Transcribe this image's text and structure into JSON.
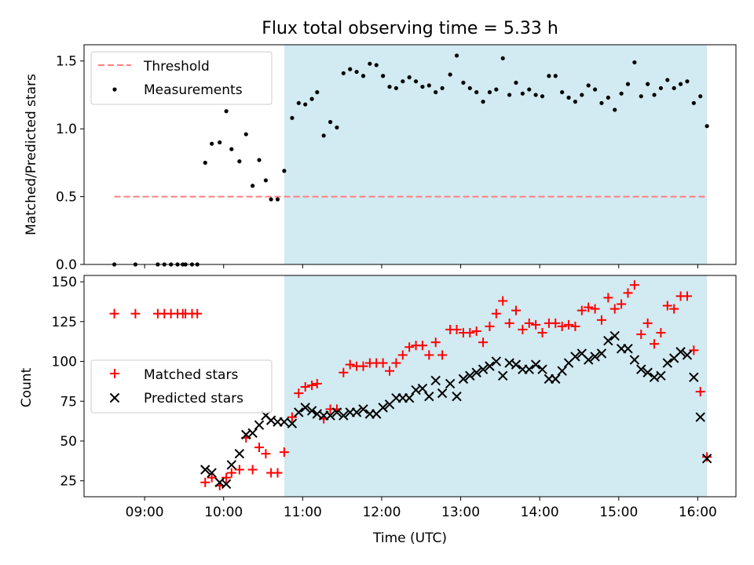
{
  "figure": {
    "title": "Flux total observing time = 5.33 h"
  },
  "colors": {
    "shade": "#add8e6",
    "threshold": "#ff7f7f",
    "measurement": "#000000",
    "matched": "#ff0000",
    "predicted": "#000000"
  },
  "chart_data": [
    {
      "type": "scatter",
      "panel": "top",
      "ylabel": "Matched/Predicted stars",
      "xlabel": "",
      "ylim": [
        0,
        1.62
      ],
      "yticks": [
        0.0,
        0.5,
        1.0,
        1.5
      ],
      "ytick_labels": [
        "0.0",
        "0.5",
        "1.0",
        "1.5"
      ],
      "xlim": [
        "08:14",
        "16:29"
      ],
      "shaded_span": [
        "10:46",
        "16:07"
      ],
      "legend": {
        "position": "upper left",
        "entries": [
          "Threshold",
          "Measurements"
        ]
      },
      "threshold": {
        "name": "Threshold",
        "y": 0.5,
        "x_range": [
          "08:37",
          "16:07"
        ]
      },
      "series": [
        {
          "name": "Measurements",
          "marker": "dot",
          "points": [
            [
              "08:37",
              0.0
            ],
            [
              "08:53",
              0.0
            ],
            [
              "09:10",
              0.0
            ],
            [
              "09:15",
              0.0
            ],
            [
              "09:20",
              0.0
            ],
            [
              "09:25",
              0.0
            ],
            [
              "09:29",
              0.0
            ],
            [
              "09:31",
              0.0
            ],
            [
              "09:36",
              0.0
            ],
            [
              "09:40",
              0.0
            ],
            [
              "09:46",
              0.75
            ],
            [
              "09:51",
              0.89
            ],
            [
              "09:57",
              0.9
            ],
            [
              "10:02",
              1.13
            ],
            [
              "10:06",
              0.85
            ],
            [
              "10:12",
              0.76
            ],
            [
              "10:17",
              0.96
            ],
            [
              "10:22",
              0.58
            ],
            [
              "10:27",
              0.77
            ],
            [
              "10:32",
              0.62
            ],
            [
              "10:36",
              0.48
            ],
            [
              "10:41",
              0.48
            ],
            [
              "10:46",
              0.69
            ],
            [
              "10:52",
              1.08
            ],
            [
              "10:57",
              1.19
            ],
            [
              "11:02",
              1.18
            ],
            [
              "11:07",
              1.22
            ],
            [
              "11:11",
              1.27
            ],
            [
              "11:16",
              0.95
            ],
            [
              "11:21",
              1.05
            ],
            [
              "11:26",
              1.01
            ],
            [
              "11:31",
              1.41
            ],
            [
              "11:36",
              1.44
            ],
            [
              "11:41",
              1.42
            ],
            [
              "11:46",
              1.39
            ],
            [
              "11:51",
              1.48
            ],
            [
              "11:56",
              1.47
            ],
            [
              "12:01",
              1.39
            ],
            [
              "12:06",
              1.31
            ],
            [
              "12:11",
              1.3
            ],
            [
              "12:16",
              1.35
            ],
            [
              "12:21",
              1.38
            ],
            [
              "12:26",
              1.35
            ],
            [
              "12:31",
              1.31
            ],
            [
              "12:36",
              1.32
            ],
            [
              "12:41",
              1.27
            ],
            [
              "12:46",
              1.3
            ],
            [
              "12:52",
              1.4
            ],
            [
              "12:57",
              1.54
            ],
            [
              "13:02",
              1.34
            ],
            [
              "13:07",
              1.3
            ],
            [
              "13:12",
              1.27
            ],
            [
              "13:17",
              1.2
            ],
            [
              "13:22",
              1.27
            ],
            [
              "13:27",
              1.29
            ],
            [
              "13:32",
              1.52
            ],
            [
              "13:37",
              1.25
            ],
            [
              "13:42",
              1.34
            ],
            [
              "13:47",
              1.26
            ],
            [
              "13:52",
              1.29
            ],
            [
              "13:57",
              1.25
            ],
            [
              "14:02",
              1.24
            ],
            [
              "14:07",
              1.39
            ],
            [
              "14:12",
              1.39
            ],
            [
              "14:17",
              1.27
            ],
            [
              "14:22",
              1.23
            ],
            [
              "14:27",
              1.2
            ],
            [
              "14:32",
              1.25
            ],
            [
              "14:37",
              1.32
            ],
            [
              "14:42",
              1.29
            ],
            [
              "14:47",
              1.19
            ],
            [
              "14:52",
              1.23
            ],
            [
              "14:57",
              1.14
            ],
            [
              "15:02",
              1.26
            ],
            [
              "15:07",
              1.33
            ],
            [
              "15:12",
              1.49
            ],
            [
              "15:17",
              1.24
            ],
            [
              "15:22",
              1.33
            ],
            [
              "15:27",
              1.25
            ],
            [
              "15:32",
              1.3
            ],
            [
              "15:37",
              1.36
            ],
            [
              "15:42",
              1.3
            ],
            [
              "15:47",
              1.33
            ],
            [
              "15:52",
              1.35
            ],
            [
              "15:57",
              1.19
            ],
            [
              "16:02",
              1.24
            ],
            [
              "16:07",
              1.02
            ]
          ]
        }
      ]
    },
    {
      "type": "scatter",
      "panel": "bottom",
      "ylabel": "Count",
      "xlabel": "Time (UTC)",
      "ylim": [
        15,
        154
      ],
      "yticks": [
        25,
        50,
        75,
        100,
        125,
        150
      ],
      "ytick_labels": [
        "25",
        "50",
        "75",
        "100",
        "125",
        "150"
      ],
      "xlim": [
        "08:14",
        "16:29"
      ],
      "xticks": [
        "09:00",
        "10:00",
        "11:00",
        "12:00",
        "13:00",
        "14:00",
        "15:00",
        "16:00"
      ],
      "xtick_labels": [
        "09:00",
        "10:00",
        "11:00",
        "12:00",
        "13:00",
        "14:00",
        "15:00",
        "16:00"
      ],
      "shaded_span": [
        "10:46",
        "16:07"
      ],
      "legend": {
        "position": "center left",
        "entries": [
          "Matched stars",
          "Predicted stars"
        ]
      },
      "series": [
        {
          "name": "Matched stars",
          "marker": "plus",
          "points": [
            [
              "08:37",
              130
            ],
            [
              "08:53",
              130
            ],
            [
              "09:10",
              130
            ],
            [
              "09:15",
              130
            ],
            [
              "09:20",
              130
            ],
            [
              "09:25",
              130
            ],
            [
              "09:29",
              130
            ],
            [
              "09:31",
              130
            ],
            [
              "09:36",
              130
            ],
            [
              "09:40",
              130
            ],
            [
              "09:46",
              24
            ],
            [
              "09:51",
              27
            ],
            [
              "09:57",
              22
            ],
            [
              "10:02",
              27
            ],
            [
              "10:06",
              30
            ],
            [
              "10:12",
              32
            ],
            [
              "10:17",
              52
            ],
            [
              "10:22",
              32
            ],
            [
              "10:27",
              46
            ],
            [
              "10:32",
              42
            ],
            [
              "10:36",
              30
            ],
            [
              "10:41",
              30
            ],
            [
              "10:46",
              43
            ],
            [
              "10:52",
              65
            ],
            [
              "10:57",
              80
            ],
            [
              "11:02",
              84
            ],
            [
              "11:07",
              85
            ],
            [
              "11:11",
              86
            ],
            [
              "11:16",
              64
            ],
            [
              "11:21",
              70
            ],
            [
              "11:26",
              70
            ],
            [
              "11:31",
              93
            ],
            [
              "11:36",
              98
            ],
            [
              "11:41",
              97
            ],
            [
              "11:46",
              97
            ],
            [
              "11:51",
              99
            ],
            [
              "11:56",
              99
            ],
            [
              "12:01",
              99
            ],
            [
              "12:06",
              94
            ],
            [
              "12:11",
              99
            ],
            [
              "12:16",
              104
            ],
            [
              "12:21",
              109
            ],
            [
              "12:26",
              110
            ],
            [
              "12:31",
              110
            ],
            [
              "12:36",
              104
            ],
            [
              "12:41",
              112
            ],
            [
              "12:46",
              104
            ],
            [
              "12:52",
              120
            ],
            [
              "12:57",
              120
            ],
            [
              "13:02",
              118
            ],
            [
              "13:07",
              118
            ],
            [
              "13:12",
              119
            ],
            [
              "13:17",
              112
            ],
            [
              "13:22",
              122
            ],
            [
              "13:27",
              130
            ],
            [
              "13:32",
              138
            ],
            [
              "13:37",
              124
            ],
            [
              "13:42",
              132
            ],
            [
              "13:47",
              120
            ],
            [
              "13:52",
              124
            ],
            [
              "13:57",
              123
            ],
            [
              "14:02",
              118
            ],
            [
              "14:07",
              124
            ],
            [
              "14:12",
              124
            ],
            [
              "14:17",
              122
            ],
            [
              "14:22",
              123
            ],
            [
              "14:27",
              122
            ],
            [
              "14:32",
              132
            ],
            [
              "14:37",
              134
            ],
            [
              "14:42",
              133
            ],
            [
              "14:47",
              126
            ],
            [
              "14:52",
              140
            ],
            [
              "14:57",
              133
            ],
            [
              "15:02",
              136
            ],
            [
              "15:07",
              143
            ],
            [
              "15:12",
              148
            ],
            [
              "15:17",
              117
            ],
            [
              "15:22",
              124
            ],
            [
              "15:27",
              111
            ],
            [
              "15:32",
              118
            ],
            [
              "15:37",
              135
            ],
            [
              "15:42",
              133
            ],
            [
              "15:47",
              141
            ],
            [
              "15:52",
              141
            ],
            [
              "15:57",
              107
            ],
            [
              "16:02",
              81
            ],
            [
              "16:07",
              40
            ]
          ]
        },
        {
          "name": "Predicted stars",
          "marker": "x",
          "points": [
            [
              "09:46",
              32
            ],
            [
              "09:51",
              30
            ],
            [
              "09:57",
              24
            ],
            [
              "10:02",
              23
            ],
            [
              "10:06",
              35
            ],
            [
              "10:12",
              42
            ],
            [
              "10:17",
              54
            ],
            [
              "10:22",
              55
            ],
            [
              "10:27",
              60
            ],
            [
              "10:32",
              66
            ],
            [
              "10:36",
              63
            ],
            [
              "10:41",
              62
            ],
            [
              "10:46",
              62
            ],
            [
              "10:52",
              61
            ],
            [
              "10:57",
              68
            ],
            [
              "11:02",
              71
            ],
            [
              "11:07",
              69
            ],
            [
              "11:11",
              67
            ],
            [
              "11:16",
              66
            ],
            [
              "11:21",
              66
            ],
            [
              "11:26",
              68
            ],
            [
              "11:31",
              66
            ],
            [
              "11:36",
              68
            ],
            [
              "11:41",
              68
            ],
            [
              "11:46",
              70
            ],
            [
              "11:51",
              67
            ],
            [
              "11:56",
              67
            ],
            [
              "12:01",
              71
            ],
            [
              "12:06",
              73
            ],
            [
              "12:11",
              77
            ],
            [
              "12:16",
              77
            ],
            [
              "12:21",
              77
            ],
            [
              "12:26",
              82
            ],
            [
              "12:31",
              83
            ],
            [
              "12:36",
              78
            ],
            [
              "12:41",
              88
            ],
            [
              "12:46",
              80
            ],
            [
              "12:52",
              86
            ],
            [
              "12:57",
              78
            ],
            [
              "13:02",
              89
            ],
            [
              "13:07",
              91
            ],
            [
              "13:12",
              93
            ],
            [
              "13:17",
              95
            ],
            [
              "13:22",
              97
            ],
            [
              "13:27",
              100
            ],
            [
              "13:32",
              91
            ],
            [
              "13:37",
              99
            ],
            [
              "13:42",
              98
            ],
            [
              "13:47",
              95
            ],
            [
              "13:52",
              95
            ],
            [
              "13:57",
              98
            ],
            [
              "14:02",
              95
            ],
            [
              "14:07",
              89
            ],
            [
              "14:12",
              89
            ],
            [
              "14:17",
              94
            ],
            [
              "14:22",
              99
            ],
            [
              "14:27",
              103
            ],
            [
              "14:32",
              105
            ],
            [
              "14:37",
              101
            ],
            [
              "14:42",
              103
            ],
            [
              "14:47",
              105
            ],
            [
              "14:52",
              113
            ],
            [
              "14:57",
              116
            ],
            [
              "15:02",
              108
            ],
            [
              "15:07",
              108
            ],
            [
              "15:12",
              101
            ],
            [
              "15:17",
              95
            ],
            [
              "15:22",
              93
            ],
            [
              "15:27",
              90
            ],
            [
              "15:32",
              91
            ],
            [
              "15:37",
              99
            ],
            [
              "15:42",
              102
            ],
            [
              "15:47",
              106
            ],
            [
              "15:52",
              104
            ],
            [
              "15:57",
              90
            ],
            [
              "16:02",
              65
            ],
            [
              "16:07",
              39
            ]
          ]
        }
      ]
    }
  ]
}
